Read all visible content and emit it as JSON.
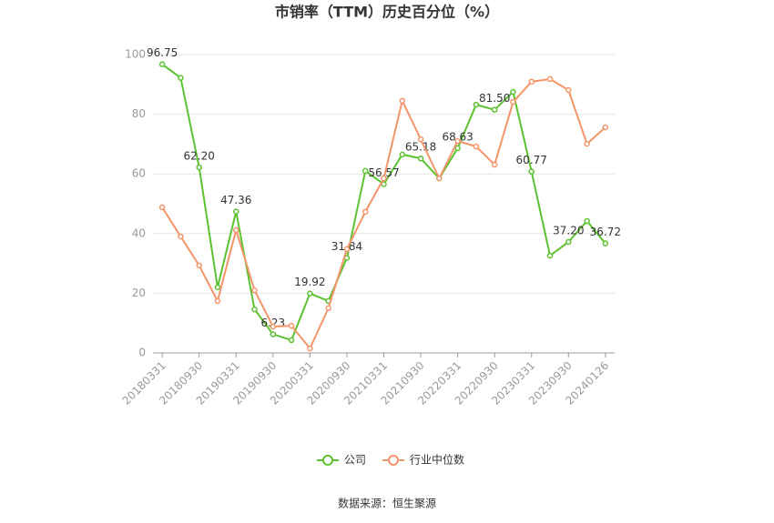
{
  "chart_data": {
    "type": "line",
    "title": "市销率（TTM）历史百分位（%）",
    "source": "数据来源：恒生聚源",
    "categories": [
      "20180331",
      null,
      "20180930",
      null,
      "20190331",
      null,
      "20190930",
      null,
      "20200331",
      null,
      "20200930",
      null,
      "20210331",
      null,
      "20210930",
      null,
      "20220331",
      null,
      "20220930",
      null,
      "20230331",
      null,
      "20230930",
      null,
      "20240126"
    ],
    "series": [
      {
        "name": "公司",
        "color": "#5cc230",
        "values": [
          96.75,
          92.2,
          62.2,
          22,
          47.36,
          14.6,
          6.23,
          4.3,
          19.92,
          17.4,
          31.84,
          61,
          56.57,
          66.5,
          65.18,
          58.5,
          68.63,
          83.2,
          81.5,
          87.5,
          60.77,
          32.6,
          37.2,
          44.2,
          36.72
        ],
        "value_labels": [
          "96.75",
          null,
          "62.20",
          null,
          "47.36",
          null,
          "6.23",
          null,
          "19.92",
          null,
          "31.84",
          null,
          "56.57",
          null,
          "65.18",
          null,
          "68.63",
          null,
          "81.50",
          null,
          "60.77",
          null,
          "37.20",
          null,
          "36.72"
        ]
      },
      {
        "name": "行业中位数",
        "color": "#f4956a",
        "values": [
          48.8,
          39,
          29.3,
          17.4,
          41.2,
          21,
          8.8,
          9.1,
          1.5,
          15,
          34.8,
          47.3,
          58.5,
          84.5,
          71.6,
          58.5,
          71,
          69.2,
          63.1,
          84.1,
          90.9,
          91.8,
          88.1,
          70.1,
          75.6
        ]
      }
    ],
    "ylim": [
      0,
      100
    ],
    "yticks": [
      0,
      20,
      40,
      60,
      80,
      100
    ],
    "grid": true,
    "legend": "bottom"
  }
}
